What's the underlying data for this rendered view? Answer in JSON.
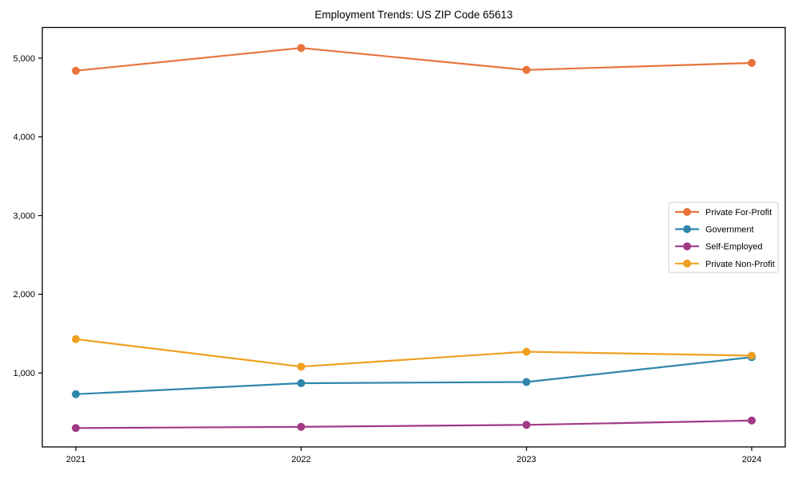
{
  "chart_data": {
    "type": "line",
    "title": "Employment Trends: US ZIP Code 65613",
    "x": [
      "2021",
      "2022",
      "2023",
      "2024"
    ],
    "series": [
      {
        "name": "Private For-Profit",
        "color": "#e8743b",
        "values": [
          4840,
          5130,
          4850,
          4940
        ]
      },
      {
        "name": "Government",
        "color": "#2e86ab",
        "values": [
          730,
          870,
          885,
          1200
        ]
      },
      {
        "name": "Self-Employed",
        "color": "#a13a86",
        "values": [
          300,
          315,
          340,
          395
        ]
      },
      {
        "name": "Private Non-Profit",
        "color": "#efa020",
        "values": [
          1430,
          1080,
          1270,
          1220
        ]
      }
    ],
    "xlabel": "",
    "ylabel": "",
    "ylim": [
      60,
      5390
    ],
    "yticks": [
      1000,
      2000,
      3000,
      4000,
      5000
    ],
    "ytick_labels": [
      "1,000",
      "2,000",
      "3,000",
      "4,000",
      "5,000"
    ],
    "grid": false,
    "legend_position": "middle-right",
    "marker": "circle",
    "spine_color": "#000000",
    "background_color": "#ffffff",
    "legend_border_color": "#cccccc"
  }
}
